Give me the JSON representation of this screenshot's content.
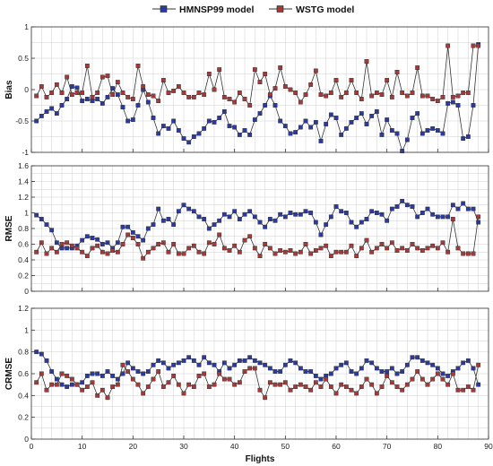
{
  "legend": {
    "items": [
      {
        "label": "HMNSP99 model",
        "color": "#2b3a9e"
      },
      {
        "label": "WSTG model",
        "color": "#a33a3a"
      }
    ]
  },
  "colors": {
    "grid": "#cfcfcf",
    "line": "#333333"
  },
  "chart_data": [
    {
      "type": "line",
      "title": "",
      "xlabel": "",
      "ylabel": "Bias",
      "xlim": [
        0,
        90
      ],
      "ylim": [
        -1,
        1
      ],
      "xticks": [
        0,
        10,
        20,
        30,
        40,
        50,
        60,
        70,
        80,
        90
      ],
      "yticks": [
        -1,
        -0.5,
        0,
        0.5,
        1
      ],
      "ytick_labels": [
        "-1",
        "-0.5",
        "0",
        "0.5",
        "1"
      ],
      "show_xtick_labels": false,
      "grid": true,
      "x": [
        1,
        2,
        3,
        4,
        5,
        6,
        7,
        8,
        9,
        10,
        11,
        12,
        13,
        14,
        15,
        16,
        17,
        18,
        19,
        20,
        21,
        22,
        23,
        24,
        25,
        26,
        27,
        28,
        29,
        30,
        31,
        32,
        33,
        34,
        35,
        36,
        37,
        38,
        39,
        40,
        41,
        42,
        43,
        44,
        45,
        46,
        47,
        48,
        49,
        50,
        51,
        52,
        53,
        54,
        55,
        56,
        57,
        58,
        59,
        60,
        61,
        62,
        63,
        64,
        65,
        66,
        67,
        68,
        69,
        70,
        71,
        72,
        73,
        74,
        75,
        76,
        77,
        78,
        79,
        80,
        81,
        82,
        83,
        84,
        85,
        86,
        87,
        88
      ],
      "series": [
        {
          "name": "HMNSP99 model",
          "values": [
            -0.5,
            -0.42,
            -0.35,
            -0.3,
            -0.38,
            -0.25,
            -0.15,
            0.05,
            0.03,
            -0.18,
            -0.15,
            -0.18,
            -0.15,
            -0.22,
            -0.12,
            0.02,
            -0.08,
            -0.28,
            -0.5,
            -0.48,
            -0.25,
            0.0,
            -0.2,
            -0.45,
            -0.7,
            -0.58,
            -0.62,
            -0.5,
            -0.65,
            -0.78,
            -0.84,
            -0.75,
            -0.7,
            -0.62,
            -0.5,
            -0.52,
            -0.45,
            -0.35,
            -0.58,
            -0.6,
            -0.72,
            -0.65,
            -0.72,
            -0.48,
            -0.38,
            -0.25,
            -0.1,
            -0.25,
            -0.5,
            -0.58,
            -0.7,
            -0.68,
            -0.6,
            -0.5,
            -0.6,
            -0.52,
            -0.82,
            -0.55,
            -0.4,
            -0.45,
            -0.72,
            -0.62,
            -0.52,
            -0.45,
            -0.38,
            -0.55,
            -0.42,
            -0.35,
            -0.72,
            -0.48,
            -0.65,
            -0.7,
            -0.98,
            -0.8,
            -0.45,
            -0.38,
            -0.7,
            -0.65,
            -0.62,
            -0.65,
            -0.7,
            -0.22,
            -0.2,
            -0.25,
            -0.78,
            -0.75,
            -0.25,
            0.72
          ]
        },
        {
          "name": "WSTG model",
          "values": [
            -0.1,
            0.05,
            -0.12,
            -0.05,
            0.08,
            -0.05,
            0.2,
            -0.08,
            -0.05,
            -0.05,
            0.38,
            -0.12,
            -0.05,
            0.2,
            0.22,
            -0.08,
            0.12,
            -0.05,
            -0.12,
            -0.15,
            0.38,
            0.05,
            -0.08,
            -0.1,
            -0.18,
            0.15,
            -0.05,
            -0.02,
            0.05,
            -0.05,
            -0.12,
            -0.12,
            -0.05,
            -0.08,
            0.25,
            0.0,
            0.32,
            -0.12,
            -0.15,
            -0.2,
            -0.05,
            -0.15,
            -0.25,
            0.32,
            0.12,
            0.25,
            -0.08,
            0.02,
            0.35,
            0.05,
            0.0,
            -0.05,
            -0.2,
            -0.08,
            0.08,
            0.3,
            -0.08,
            -0.1,
            -0.05,
            0.15,
            -0.12,
            -0.05,
            0.15,
            -0.05,
            -0.15,
            0.45,
            -0.1,
            -0.05,
            -0.08,
            0.15,
            -0.12,
            0.28,
            -0.05,
            -0.1,
            -0.05,
            0.35,
            -0.1,
            -0.1,
            -0.15,
            -0.18,
            -0.12,
            0.7,
            -0.12,
            -0.1,
            -0.05,
            -0.05,
            0.7,
            0.7
          ]
        }
      ]
    },
    {
      "type": "line",
      "title": "",
      "xlabel": "",
      "ylabel": "RMSE",
      "xlim": [
        0,
        90
      ],
      "ylim": [
        0,
        1.6
      ],
      "xticks": [
        0,
        10,
        20,
        30,
        40,
        50,
        60,
        70,
        80,
        90
      ],
      "yticks": [
        0,
        0.2,
        0.4,
        0.6,
        0.8,
        1,
        1.2,
        1.4,
        1.6
      ],
      "ytick_labels": [
        "0",
        "0.2",
        "0.4",
        "0.6",
        "0.8",
        "1",
        "1.2",
        "1.4",
        "1.6"
      ],
      "show_xtick_labels": false,
      "grid": true,
      "x": [
        1,
        2,
        3,
        4,
        5,
        6,
        7,
        8,
        9,
        10,
        11,
        12,
        13,
        14,
        15,
        16,
        17,
        18,
        19,
        20,
        21,
        22,
        23,
        24,
        25,
        26,
        27,
        28,
        29,
        30,
        31,
        32,
        33,
        34,
        35,
        36,
        37,
        38,
        39,
        40,
        41,
        42,
        43,
        44,
        45,
        46,
        47,
        48,
        49,
        50,
        51,
        52,
        53,
        54,
        55,
        56,
        57,
        58,
        59,
        60,
        61,
        62,
        63,
        64,
        65,
        66,
        67,
        68,
        69,
        70,
        71,
        72,
        73,
        74,
        75,
        76,
        77,
        78,
        79,
        80,
        81,
        82,
        83,
        84,
        85,
        86,
        87,
        88
      ],
      "series": [
        {
          "name": "HMNSP99 model",
          "values": [
            0.97,
            0.92,
            0.85,
            0.78,
            0.62,
            0.55,
            0.55,
            0.55,
            0.58,
            0.65,
            0.7,
            0.68,
            0.66,
            0.6,
            0.62,
            0.55,
            0.62,
            0.82,
            0.82,
            0.75,
            0.7,
            0.65,
            0.8,
            0.85,
            1.05,
            0.9,
            0.92,
            0.85,
            1.02,
            1.1,
            1.05,
            1.02,
            0.95,
            0.92,
            0.8,
            0.85,
            0.9,
            0.98,
            0.95,
            1.02,
            0.92,
            0.98,
            1.02,
            0.95,
            0.88,
            0.82,
            0.92,
            0.9,
            0.98,
            0.95,
            1.0,
            0.98,
            0.98,
            1.02,
            1.0,
            0.88,
            0.72,
            0.85,
            0.95,
            1.08,
            1.02,
            1.0,
            0.88,
            0.82,
            0.88,
            0.92,
            1.02,
            1.0,
            0.98,
            0.9,
            1.05,
            1.08,
            1.15,
            1.1,
            1.08,
            0.95,
            1.0,
            1.05,
            0.98,
            0.95,
            0.95,
            0.95,
            1.1,
            1.05,
            1.12,
            1.05,
            1.05,
            0.88
          ]
        },
        {
          "name": "WSTG model",
          "values": [
            0.5,
            0.62,
            0.48,
            0.55,
            0.5,
            0.6,
            0.62,
            0.58,
            0.55,
            0.5,
            0.45,
            0.55,
            0.58,
            0.5,
            0.48,
            0.52,
            0.5,
            0.6,
            0.72,
            0.68,
            0.6,
            0.42,
            0.5,
            0.55,
            0.6,
            0.62,
            0.5,
            0.6,
            0.48,
            0.48,
            0.55,
            0.58,
            0.5,
            0.48,
            0.62,
            0.6,
            0.72,
            0.55,
            0.52,
            0.58,
            0.5,
            0.65,
            0.7,
            0.55,
            0.45,
            0.6,
            0.55,
            0.48,
            0.52,
            0.5,
            0.52,
            0.48,
            0.5,
            0.6,
            0.48,
            0.52,
            0.55,
            0.58,
            0.45,
            0.5,
            0.5,
            0.5,
            0.58,
            0.45,
            0.55,
            0.65,
            0.5,
            0.55,
            0.6,
            0.55,
            0.62,
            0.52,
            0.55,
            0.52,
            0.6,
            0.55,
            0.52,
            0.55,
            0.58,
            0.55,
            0.62,
            0.5,
            0.92,
            0.55,
            0.48,
            0.48,
            0.48,
            0.95
          ]
        }
      ]
    },
    {
      "type": "line",
      "title": "",
      "xlabel": "Flights",
      "ylabel": "CRMSE",
      "xlim": [
        0,
        90
      ],
      "ylim": [
        0,
        1.2
      ],
      "xticks": [
        0,
        10,
        20,
        30,
        40,
        50,
        60,
        70,
        80,
        90
      ],
      "yticks": [
        0,
        0.2,
        0.4,
        0.6,
        0.8,
        1,
        1.2
      ],
      "ytick_labels": [
        "0",
        "0.2",
        "0.4",
        "0.6",
        "0.8",
        "1",
        "1.2"
      ],
      "show_xtick_labels": true,
      "grid": true,
      "x": [
        1,
        2,
        3,
        4,
        5,
        6,
        7,
        8,
        9,
        10,
        11,
        12,
        13,
        14,
        15,
        16,
        17,
        18,
        19,
        20,
        21,
        22,
        23,
        24,
        25,
        26,
        27,
        28,
        29,
        30,
        31,
        32,
        33,
        34,
        35,
        36,
        37,
        38,
        39,
        40,
        41,
        42,
        43,
        44,
        45,
        46,
        47,
        48,
        49,
        50,
        51,
        52,
        53,
        54,
        55,
        56,
        57,
        58,
        59,
        60,
        61,
        62,
        63,
        64,
        65,
        66,
        67,
        68,
        69,
        70,
        71,
        72,
        73,
        74,
        75,
        76,
        77,
        78,
        79,
        80,
        81,
        82,
        83,
        84,
        85,
        86,
        87,
        88
      ],
      "series": [
        {
          "name": "HMNSP99 model",
          "values": [
            0.8,
            0.78,
            0.72,
            0.62,
            0.55,
            0.5,
            0.48,
            0.5,
            0.5,
            0.52,
            0.58,
            0.6,
            0.6,
            0.58,
            0.62,
            0.58,
            0.55,
            0.6,
            0.7,
            0.65,
            0.62,
            0.6,
            0.62,
            0.68,
            0.72,
            0.7,
            0.65,
            0.68,
            0.7,
            0.72,
            0.75,
            0.72,
            0.68,
            0.75,
            0.7,
            0.68,
            0.62,
            0.7,
            0.65,
            0.68,
            0.72,
            0.72,
            0.75,
            0.72,
            0.7,
            0.68,
            0.65,
            0.62,
            0.62,
            0.68,
            0.72,
            0.7,
            0.65,
            0.62,
            0.62,
            0.58,
            0.55,
            0.58,
            0.6,
            0.65,
            0.68,
            0.7,
            0.62,
            0.6,
            0.65,
            0.72,
            0.7,
            0.65,
            0.62,
            0.62,
            0.65,
            0.6,
            0.62,
            0.68,
            0.75,
            0.75,
            0.72,
            0.7,
            0.68,
            0.65,
            0.6,
            0.58,
            0.62,
            0.65,
            0.7,
            0.72,
            0.65,
            0.5
          ]
        },
        {
          "name": "WSTG model",
          "values": [
            0.52,
            0.6,
            0.45,
            0.5,
            0.5,
            0.6,
            0.58,
            0.55,
            0.5,
            0.45,
            0.48,
            0.52,
            0.4,
            0.45,
            0.38,
            0.48,
            0.5,
            0.68,
            0.62,
            0.55,
            0.5,
            0.42,
            0.48,
            0.55,
            0.62,
            0.48,
            0.52,
            0.58,
            0.5,
            0.42,
            0.5,
            0.48,
            0.58,
            0.6,
            0.48,
            0.5,
            0.6,
            0.55,
            0.55,
            0.5,
            0.52,
            0.62,
            0.65,
            0.65,
            0.45,
            0.38,
            0.52,
            0.5,
            0.5,
            0.52,
            0.45,
            0.48,
            0.5,
            0.48,
            0.45,
            0.52,
            0.48,
            0.55,
            0.48,
            0.42,
            0.5,
            0.48,
            0.45,
            0.42,
            0.48,
            0.55,
            0.5,
            0.42,
            0.48,
            0.58,
            0.52,
            0.48,
            0.45,
            0.5,
            0.55,
            0.62,
            0.55,
            0.5,
            0.55,
            0.6,
            0.55,
            0.5,
            0.6,
            0.45,
            0.45,
            0.48,
            0.45,
            0.68
          ]
        }
      ]
    }
  ]
}
